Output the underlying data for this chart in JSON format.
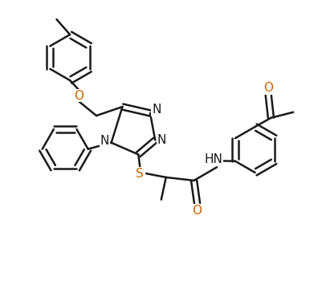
{
  "bg_color": "#ffffff",
  "line_color": "#1a1a1a",
  "bond_lw": 1.8,
  "label_fontsize": 11,
  "label_color_N": "#1a1a1a",
  "label_color_O": "#cc6600",
  "label_color_S": "#cc6600",
  "figsize": [
    3.96,
    3.65
  ],
  "dpi": 100,
  "xlim": [
    0,
    10
  ],
  "ylim": [
    0,
    9.2
  ]
}
